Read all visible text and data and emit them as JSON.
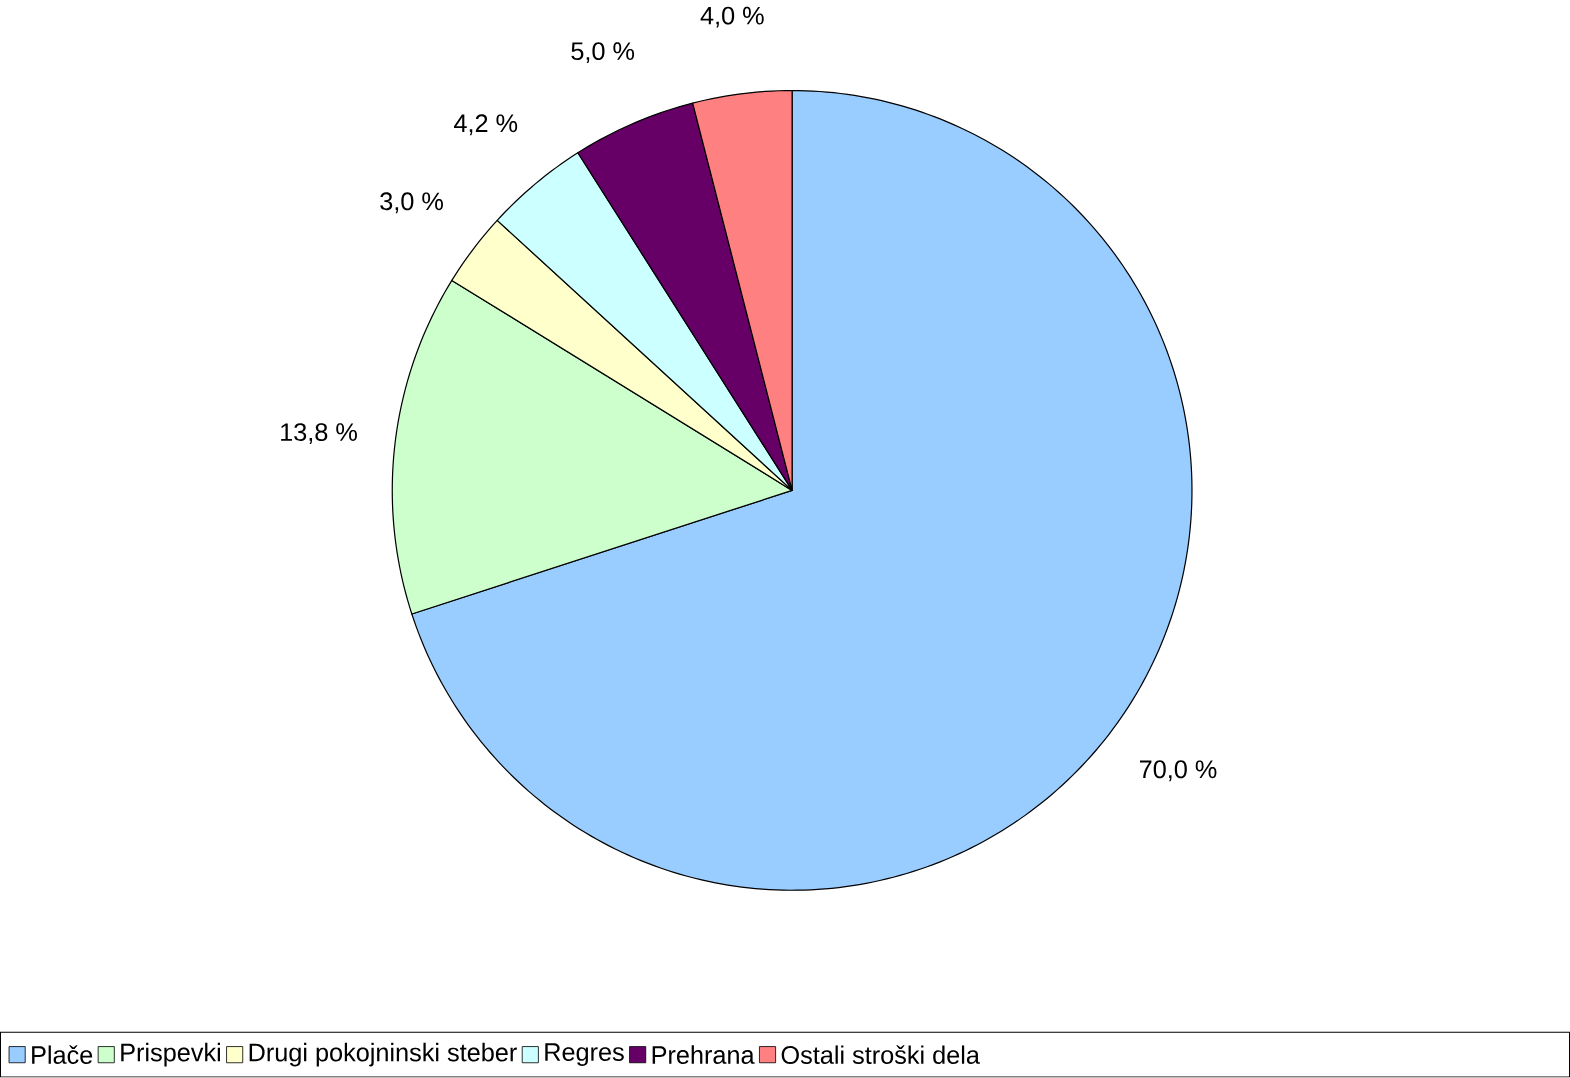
{
  "chart_data": {
    "type": "pie",
    "categories": [
      "Plače",
      "Prispevki",
      "Drugi pokojninski steber",
      "Regres",
      "Prehrana",
      "Ostali stroški dela"
    ],
    "values": [
      70.0,
      13.8,
      3.0,
      4.2,
      5.0,
      4.0
    ],
    "value_labels": [
      "70,0 %",
      "13,8 %",
      "3,0 %",
      "4,2 %",
      "5,0 %",
      "4,0 %"
    ],
    "colors": [
      "#99ccff",
      "#ccffcc",
      "#ffffcc",
      "#ccffff",
      "#660066",
      "#ff8080"
    ],
    "legend": "bottom"
  }
}
